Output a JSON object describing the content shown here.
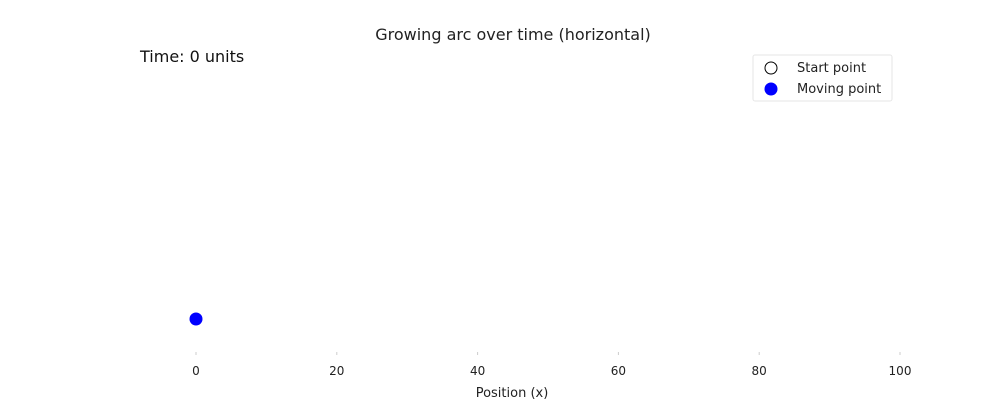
{
  "chart_data": {
    "type": "scatter",
    "title": "Growing arc over time (horizontal)",
    "time_label": "Time: 0 units",
    "xlabel": "Position (x)",
    "ylabel": "",
    "xlim": [
      -10,
      101
    ],
    "xticks": [
      0,
      20,
      40,
      60,
      80,
      100
    ],
    "grid": false,
    "legend_position": "top-right",
    "series": [
      {
        "name": "Start point",
        "marker": "hollow-circle",
        "color": "#000000",
        "points": []
      },
      {
        "name": "Moving point",
        "marker": "filled-circle",
        "color": "#0000ff",
        "points": [
          {
            "x": 0,
            "y": 0
          }
        ]
      }
    ]
  }
}
